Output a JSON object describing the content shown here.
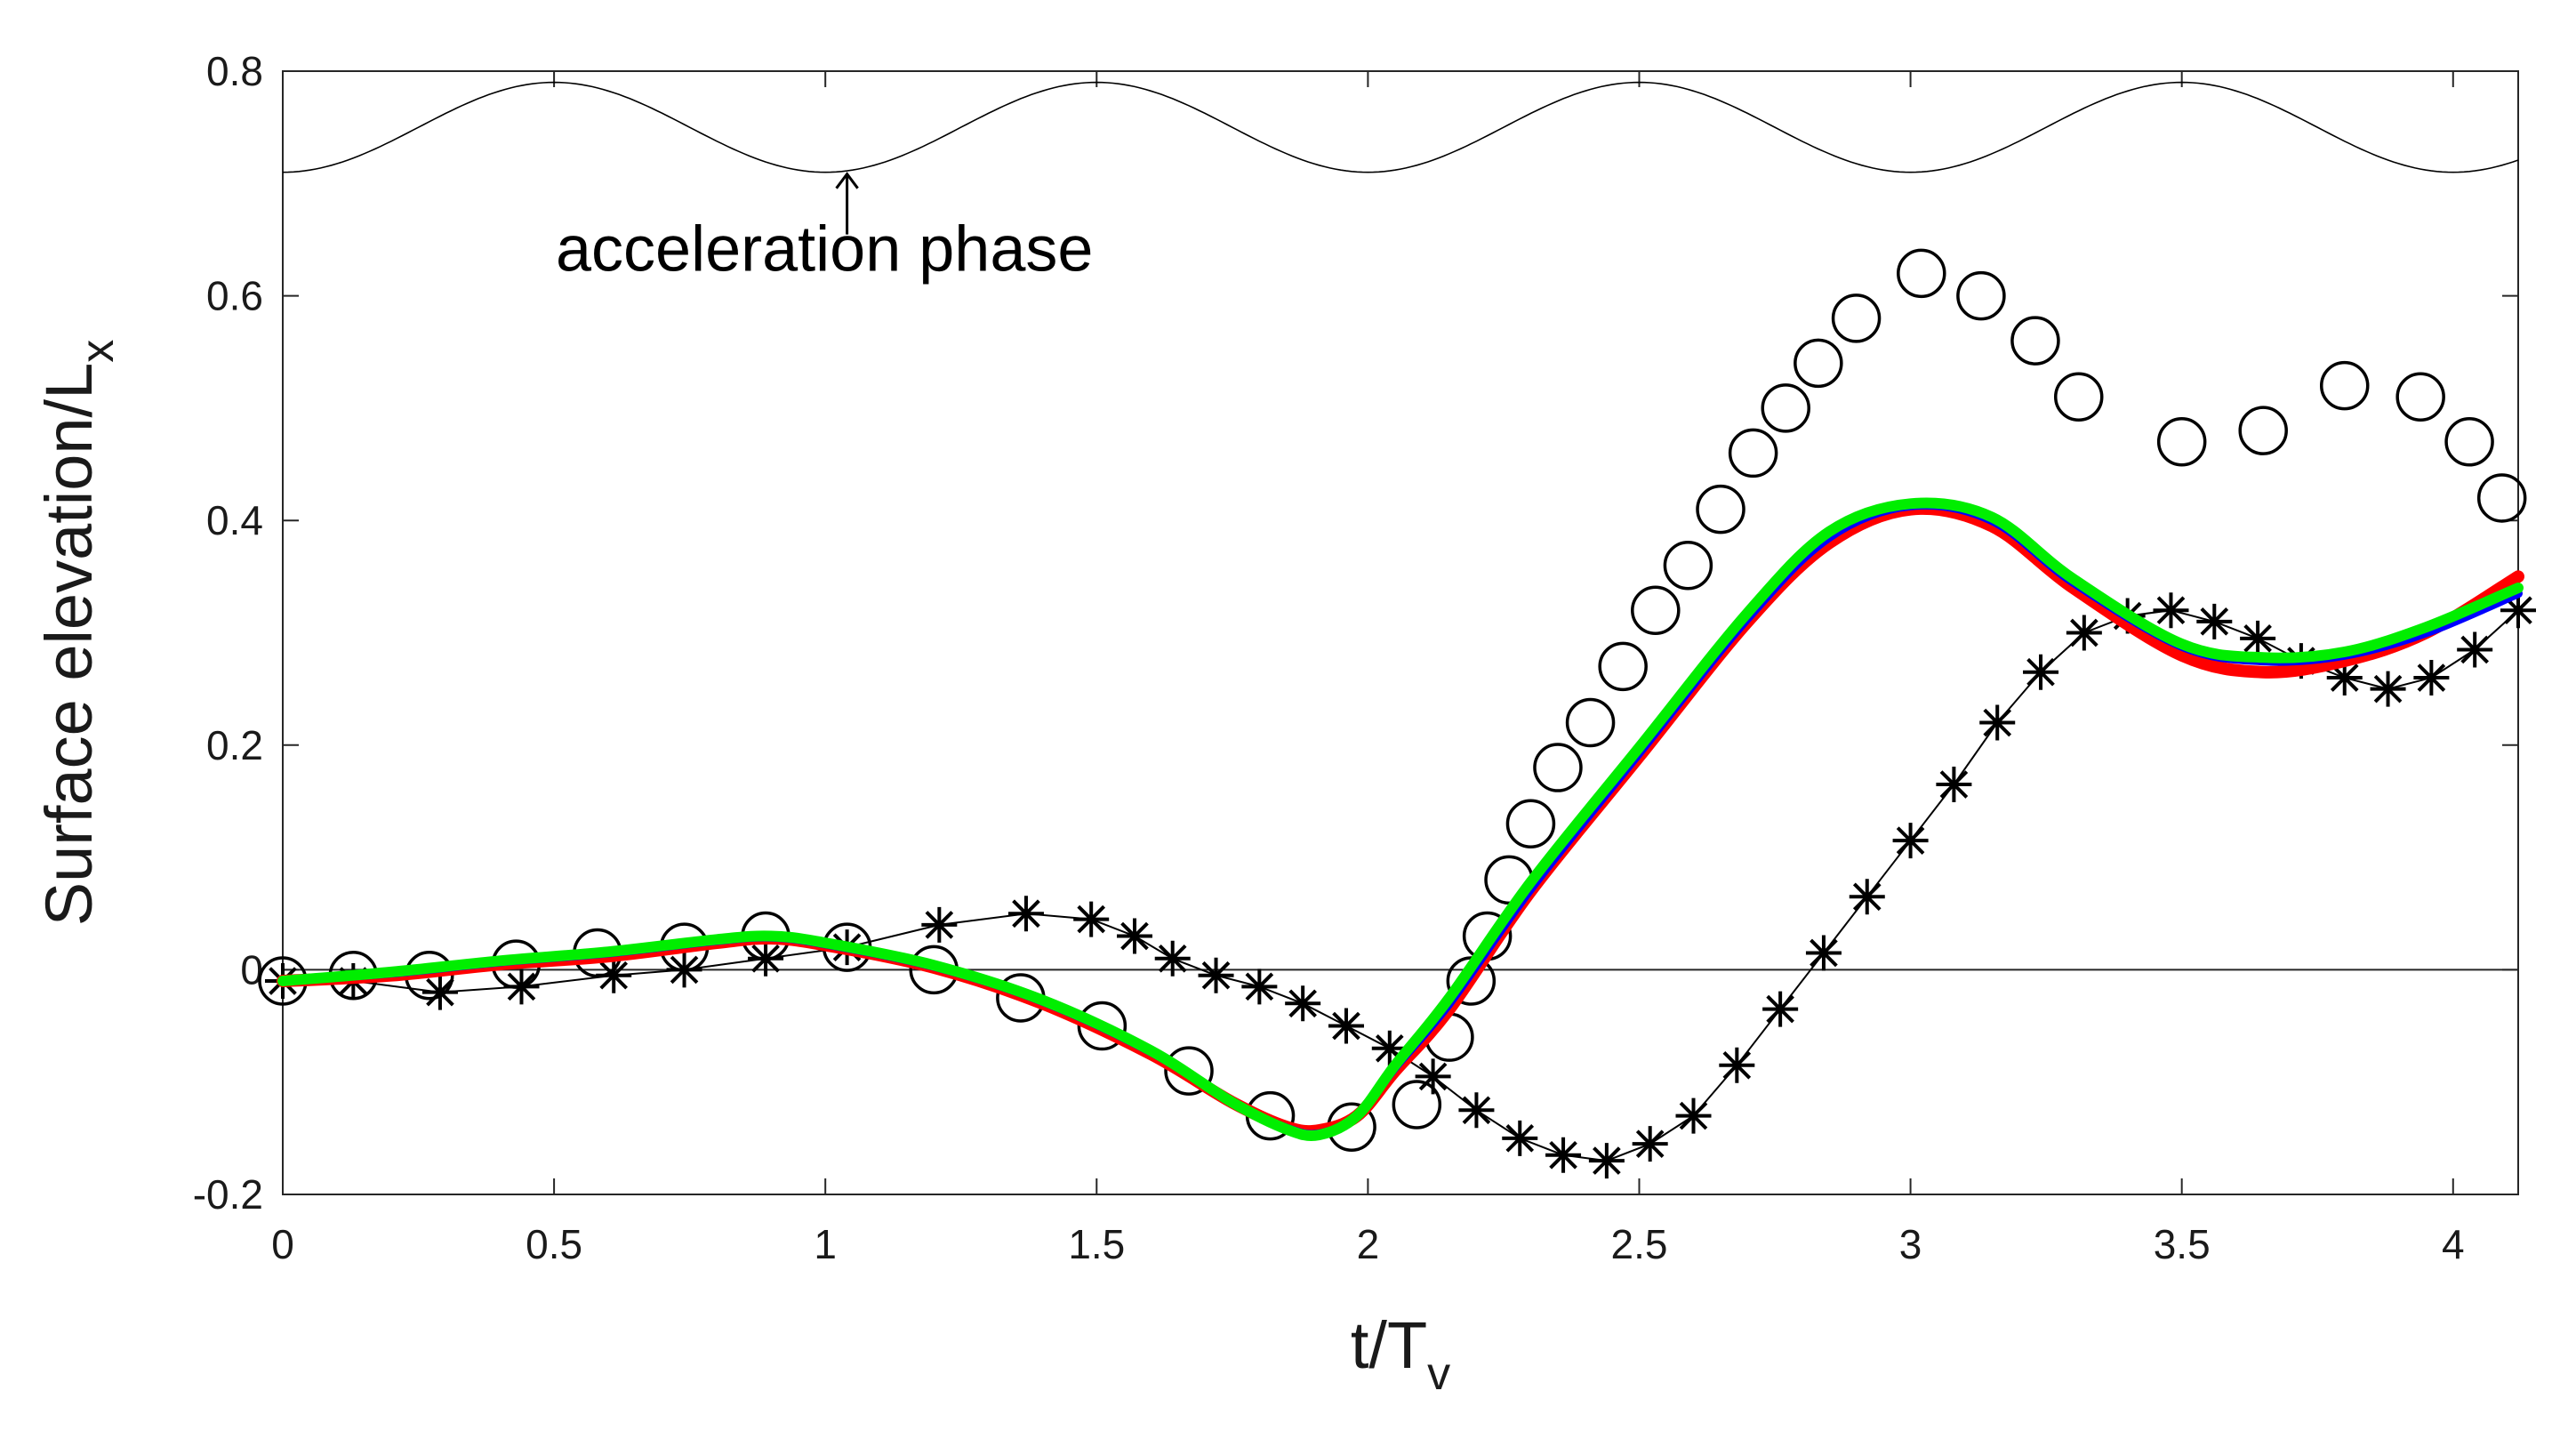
{
  "chart_data": {
    "type": "line",
    "title": "",
    "xlabel": {
      "main": "t/T",
      "sub": "v"
    },
    "ylabel": {
      "main": "Surface elevation/L",
      "sub": "x"
    },
    "xlim": [
      0,
      4.12
    ],
    "ylim": [
      -0.2,
      0.8
    ],
    "xticks": [
      0,
      0.5,
      1,
      1.5,
      2,
      2.5,
      3,
      3.5,
      4
    ],
    "xtick_labels": [
      "0",
      "0.5",
      "1",
      "1.5",
      "2",
      "2.5",
      "3",
      "3.5",
      "4"
    ],
    "yticks": [
      -0.2,
      0,
      0.2,
      0.4,
      0.6,
      0.8
    ],
    "ytick_labels": [
      "-0.2",
      "0",
      "0.2",
      "0.4",
      "0.6",
      "0.8"
    ],
    "grid": false,
    "zero_line": true,
    "annotation": {
      "text": "acceleration phase",
      "x": 1.04,
      "y": 0.71
    },
    "colors": {
      "red": "#ff0000",
      "blue": "#0000ff",
      "green": "#00ee00",
      "black": "#000000"
    },
    "series": [
      {
        "name": "acceleration signal",
        "style": "thin-line",
        "color": "#000000",
        "function": "0.75 - 0.04*cos(2*pi*t)"
      },
      {
        "name": "circles",
        "style": "open-circle",
        "color": "#000000",
        "x": [
          0.0,
          0.13,
          0.27,
          0.43,
          0.58,
          0.74,
          0.89,
          1.04,
          1.2,
          1.36,
          1.51,
          1.67,
          1.82,
          1.97,
          2.09,
          2.15,
          2.19,
          2.22,
          2.26,
          2.3,
          2.35,
          2.41,
          2.47,
          2.53,
          2.59,
          2.65,
          2.71,
          2.77,
          2.83,
          2.9,
          3.02,
          3.13,
          3.23,
          3.31,
          3.5,
          3.65,
          3.8,
          3.94,
          4.03,
          4.09
        ],
        "y": [
          -0.01,
          -0.005,
          -0.005,
          0.005,
          0.015,
          0.02,
          0.03,
          0.02,
          0.0,
          -0.025,
          -0.05,
          -0.09,
          -0.13,
          -0.14,
          -0.12,
          -0.06,
          -0.01,
          0.03,
          0.08,
          0.13,
          0.18,
          0.22,
          0.27,
          0.32,
          0.36,
          0.41,
          0.46,
          0.5,
          0.54,
          0.58,
          0.62,
          0.6,
          0.56,
          0.51,
          0.47,
          0.48,
          0.52,
          0.51,
          0.47,
          0.42
        ]
      },
      {
        "name": "asterisks",
        "style": "asterisk-line",
        "color": "#000000",
        "x": [
          0.0,
          0.13,
          0.29,
          0.44,
          0.61,
          0.74,
          0.89,
          1.04,
          1.21,
          1.37,
          1.49,
          1.57,
          1.64,
          1.72,
          1.8,
          1.88,
          1.96,
          2.04,
          2.12,
          2.2,
          2.28,
          2.36,
          2.44,
          2.52,
          2.6,
          2.68,
          2.76,
          2.84,
          2.92,
          3.0,
          3.08,
          3.16,
          3.24,
          3.32,
          3.4,
          3.48,
          3.56,
          3.64,
          3.72,
          3.8,
          3.88,
          3.96,
          4.04,
          4.12
        ],
        "y": [
          -0.01,
          -0.01,
          -0.02,
          -0.015,
          -0.005,
          0.0,
          0.01,
          0.02,
          0.04,
          0.05,
          0.045,
          0.03,
          0.01,
          -0.005,
          -0.015,
          -0.03,
          -0.05,
          -0.07,
          -0.095,
          -0.125,
          -0.15,
          -0.165,
          -0.17,
          -0.155,
          -0.13,
          -0.085,
          -0.035,
          0.015,
          0.065,
          0.115,
          0.165,
          0.22,
          0.265,
          0.3,
          0.315,
          0.32,
          0.31,
          0.295,
          0.275,
          0.26,
          0.25,
          0.26,
          0.285,
          0.32
        ]
      },
      {
        "name": "red",
        "style": "thick-line",
        "color": "#ff0000",
        "x": [
          0,
          0.2,
          0.4,
          0.6,
          0.8,
          0.9,
          1.0,
          1.2,
          1.4,
          1.6,
          1.75,
          1.85,
          1.91,
          1.98,
          2.05,
          2.15,
          2.3,
          2.5,
          2.7,
          2.85,
          3.0,
          3.15,
          3.3,
          3.5,
          3.65,
          3.8,
          3.95,
          4.12
        ],
        "y": [
          -0.01,
          -0.005,
          0.005,
          0.012,
          0.024,
          0.028,
          0.022,
          0.002,
          -0.03,
          -0.075,
          -0.118,
          -0.14,
          -0.143,
          -0.13,
          -0.09,
          -0.035,
          0.07,
          0.19,
          0.31,
          0.38,
          0.41,
          0.395,
          0.34,
          0.28,
          0.265,
          0.275,
          0.3,
          0.35
        ]
      },
      {
        "name": "blue",
        "style": "thick-line",
        "color": "#0000ff",
        "x": [
          0,
          0.2,
          0.4,
          0.6,
          0.8,
          0.9,
          1.0,
          1.2,
          1.4,
          1.6,
          1.75,
          1.85,
          1.91,
          1.98,
          2.05,
          2.15,
          2.3,
          2.5,
          2.7,
          2.85,
          3.0,
          3.15,
          3.3,
          3.5,
          3.65,
          3.8,
          3.95,
          4.12
        ],
        "y": [
          -0.01,
          -0.003,
          0.007,
          0.015,
          0.026,
          0.029,
          0.023,
          0.003,
          -0.028,
          -0.073,
          -0.118,
          -0.141,
          -0.146,
          -0.13,
          -0.087,
          -0.03,
          0.072,
          0.193,
          0.313,
          0.385,
          0.413,
          0.4,
          0.345,
          0.288,
          0.275,
          0.28,
          0.3,
          0.335
        ]
      },
      {
        "name": "green",
        "style": "thick-line",
        "color": "#00ee00",
        "x": [
          0,
          0.2,
          0.4,
          0.6,
          0.8,
          0.9,
          1.0,
          1.2,
          1.4,
          1.6,
          1.75,
          1.85,
          1.91,
          1.98,
          2.05,
          2.15,
          2.3,
          2.5,
          2.7,
          2.85,
          3.0,
          3.15,
          3.3,
          3.5,
          3.65,
          3.8,
          3.95,
          4.12
        ],
        "y": [
          -0.01,
          -0.002,
          0.008,
          0.016,
          0.027,
          0.03,
          0.024,
          0.004,
          -0.027,
          -0.072,
          -0.118,
          -0.142,
          -0.147,
          -0.13,
          -0.085,
          -0.025,
          0.078,
          0.198,
          0.318,
          0.39,
          0.415,
          0.403,
          0.348,
          0.29,
          0.278,
          0.283,
          0.305,
          0.34
        ]
      }
    ]
  }
}
